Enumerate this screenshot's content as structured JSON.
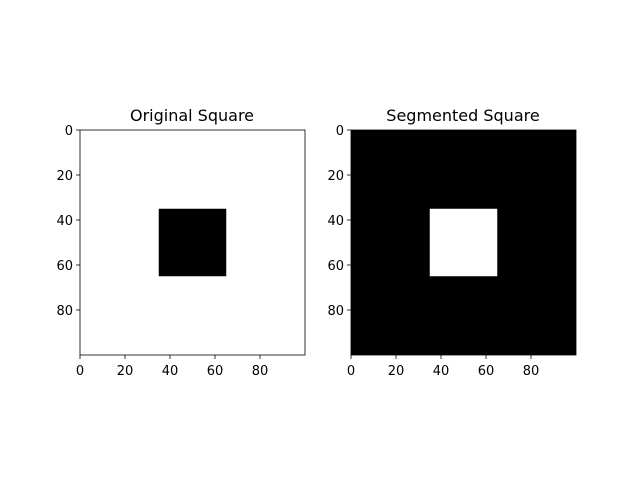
{
  "chart_data": [
    {
      "type": "heatmap",
      "title": "Original Square",
      "xlabel": "",
      "ylabel": "",
      "xlim": [
        0,
        100
      ],
      "ylim": [
        100,
        0
      ],
      "grid": false,
      "xticks": [
        0,
        20,
        40,
        60,
        80
      ],
      "yticks": [
        0,
        20,
        40,
        60,
        80
      ],
      "background_value": 1,
      "square": {
        "x0": 35,
        "x1": 65,
        "y0": 35,
        "y1": 65,
        "value": 0
      },
      "colors": {
        "0": "#000000",
        "1": "#ffffff"
      }
    },
    {
      "type": "heatmap",
      "title": "Segmented Square",
      "xlabel": "",
      "ylabel": "",
      "xlim": [
        0,
        100
      ],
      "ylim": [
        100,
        0
      ],
      "grid": false,
      "xticks": [
        0,
        20,
        40,
        60,
        80
      ],
      "yticks": [
        0,
        20,
        40,
        60,
        80
      ],
      "background_value": 0,
      "square": {
        "x0": 35,
        "x1": 65,
        "y0": 35,
        "y1": 65,
        "value": 1
      },
      "colors": {
        "0": "#000000",
        "1": "#ffffff"
      }
    }
  ]
}
